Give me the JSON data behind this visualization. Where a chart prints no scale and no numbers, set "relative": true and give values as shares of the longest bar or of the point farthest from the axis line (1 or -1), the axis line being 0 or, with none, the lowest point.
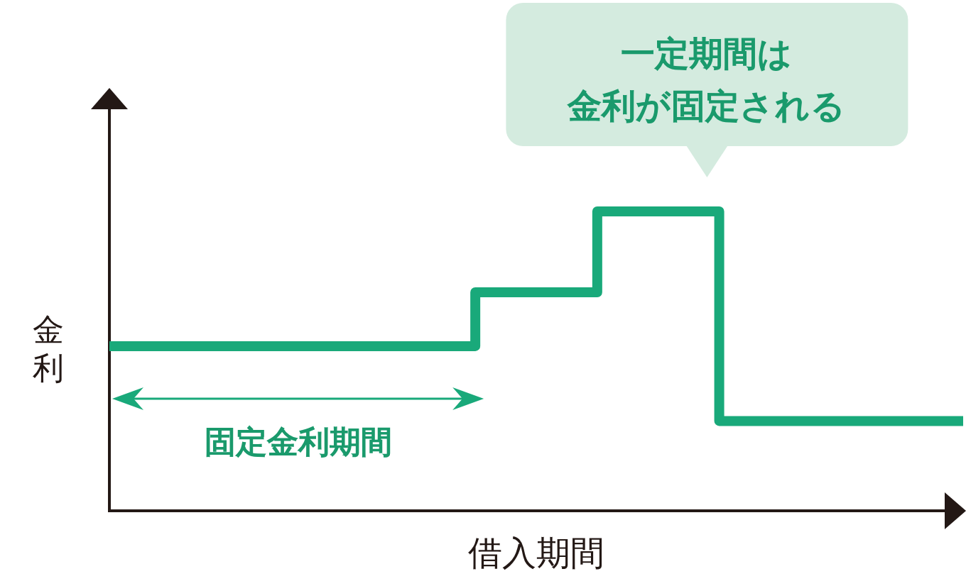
{
  "chart_data": {
    "type": "step",
    "relative": true,
    "categories": [
      null,
      null,
      null,
      null,
      null,
      null,
      null,
      null
    ],
    "series": [
      {
        "color": "#19a97a",
        "values": [
          0.55,
          0.55,
          0.55,
          0.73,
          1,
          0.3,
          0.3,
          0.3
        ]
      }
    ],
    "xlabel": "借入期間",
    "ylabel": "金利",
    "annotations": [
      {
        "text": "一定期間は金利が固定される",
        "y": 1
      },
      "固定金利期間"
    ]
  }
}
